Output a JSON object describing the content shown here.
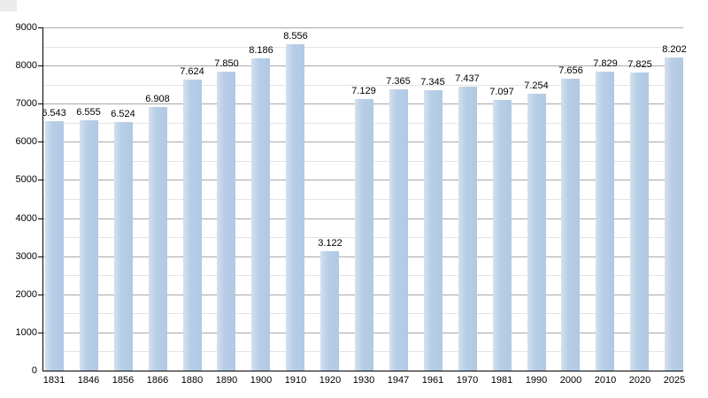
{
  "chart_data": {
    "type": "bar",
    "title": "",
    "xlabel": "",
    "ylabel": "",
    "categories": [
      "1831",
      "1846",
      "1856",
      "1866",
      "1880",
      "1890",
      "1900",
      "1910",
      "1920",
      "1930",
      "1947",
      "1961",
      "1970",
      "1981",
      "1990",
      "2000",
      "2010",
      "2020",
      "2025"
    ],
    "values": [
      6543,
      6555,
      6524,
      6908,
      7624,
      7850,
      8186,
      8556,
      3122,
      7129,
      7365,
      7345,
      7437,
      7097,
      7254,
      7656,
      7829,
      7825,
      8202
    ],
    "value_labels": [
      "6.543",
      "6.555",
      "6.524",
      "6.908",
      "7.624",
      "7.850",
      "8.186",
      "8.556",
      "3.122",
      "7.129",
      "7.365",
      "7.345",
      "7.437",
      "7.097",
      "7.254",
      "7.656",
      "7.829",
      "7.825",
      "8.202"
    ],
    "ylim": [
      0,
      9000
    ],
    "ytick_labels": [
      "0",
      "1000",
      "2000",
      "3000",
      "4000",
      "5000",
      "6000",
      "7000",
      "8000",
      "9000"
    ],
    "ytick_step": 1000,
    "minor_grid_step": 500,
    "grid": true,
    "legend_position": "none",
    "colors": {
      "bar_fill": "#b3cbe5",
      "bar_fill_light": "#d4e0ee",
      "grid_major": "#a8a8a8",
      "grid_minor": "#e4e4e4",
      "axis": "#000000",
      "text": "#000000",
      "background": "#ffffff"
    }
  }
}
